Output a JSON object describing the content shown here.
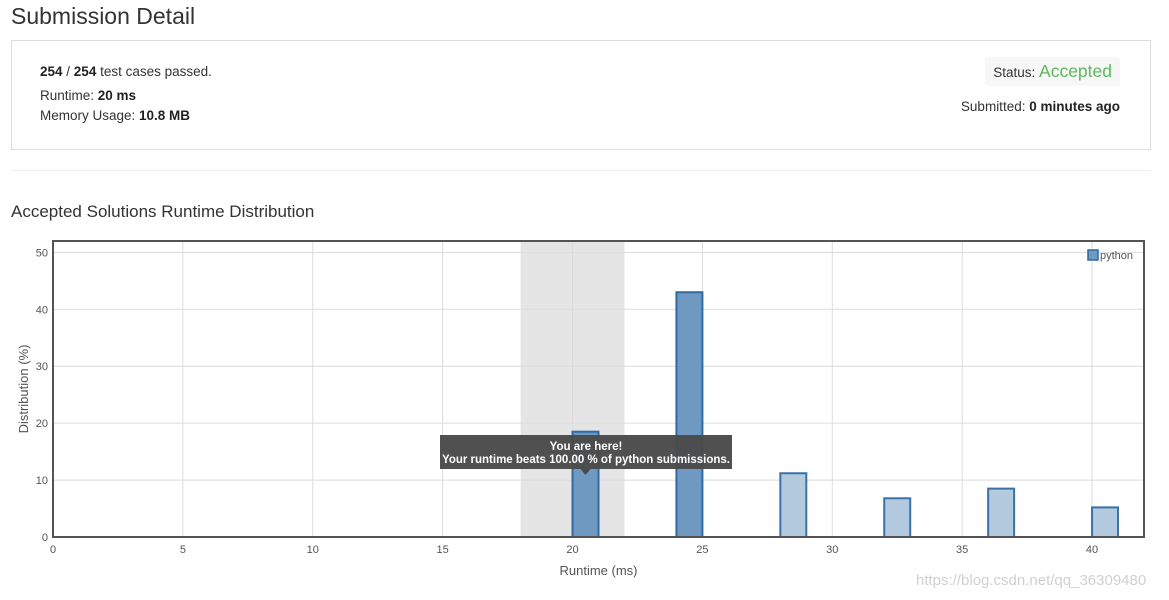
{
  "page": {
    "title": "Submission Detail"
  },
  "summary": {
    "cases_passed": "254",
    "cases_sep": " / ",
    "cases_total": "254",
    "cases_suffix": " test cases passed.",
    "runtime_label": "Runtime: ",
    "runtime_value": "20 ms",
    "memory_label": "Memory Usage: ",
    "memory_value": "10.8 MB",
    "status_label": "Status: ",
    "status_value": "Accepted",
    "submitted_label": "Submitted: ",
    "submitted_value": "0 minutes ago"
  },
  "section": {
    "title": "Accepted Solutions Runtime Distribution"
  },
  "tooltip": {
    "line1": "You are here!",
    "line2": "Your runtime beats 100.00 % of python submissions."
  },
  "watermark": "https://blog.csdn.net/qq_36309480",
  "colors": {
    "accent_green": "#5cb85c",
    "bar_dark_fill": "#6f99c1",
    "bar_dark_stroke": "#2f6aa0",
    "bar_light_fill": "#b3c9dd",
    "bar_light_stroke": "#3a72a8",
    "highlight_band": "#e5e5e5",
    "tooltip_bg": "#4a4a4a"
  },
  "chart_data": {
    "type": "bar",
    "xlabel": "Runtime (ms)",
    "ylabel": "Distribution (%)",
    "xlim": [
      0,
      42
    ],
    "ylim": [
      0,
      52
    ],
    "xticks": [
      0,
      5,
      10,
      15,
      20,
      25,
      30,
      35,
      40
    ],
    "yticks": [
      0,
      10,
      20,
      30,
      40,
      50
    ],
    "grid": true,
    "legend": "top-right",
    "highlight_range": [
      18,
      22
    ],
    "series": [
      {
        "name": "python",
        "bars": [
          {
            "x": 20.5,
            "value": 18.5,
            "emphasis": true
          },
          {
            "x": 24.5,
            "value": 43.0,
            "emphasis": true
          },
          {
            "x": 28.5,
            "value": 11.2,
            "emphasis": false
          },
          {
            "x": 32.5,
            "value": 6.8,
            "emphasis": false
          },
          {
            "x": 36.5,
            "value": 8.5,
            "emphasis": false
          },
          {
            "x": 40.5,
            "value": 5.2,
            "emphasis": false
          }
        ]
      }
    ]
  }
}
